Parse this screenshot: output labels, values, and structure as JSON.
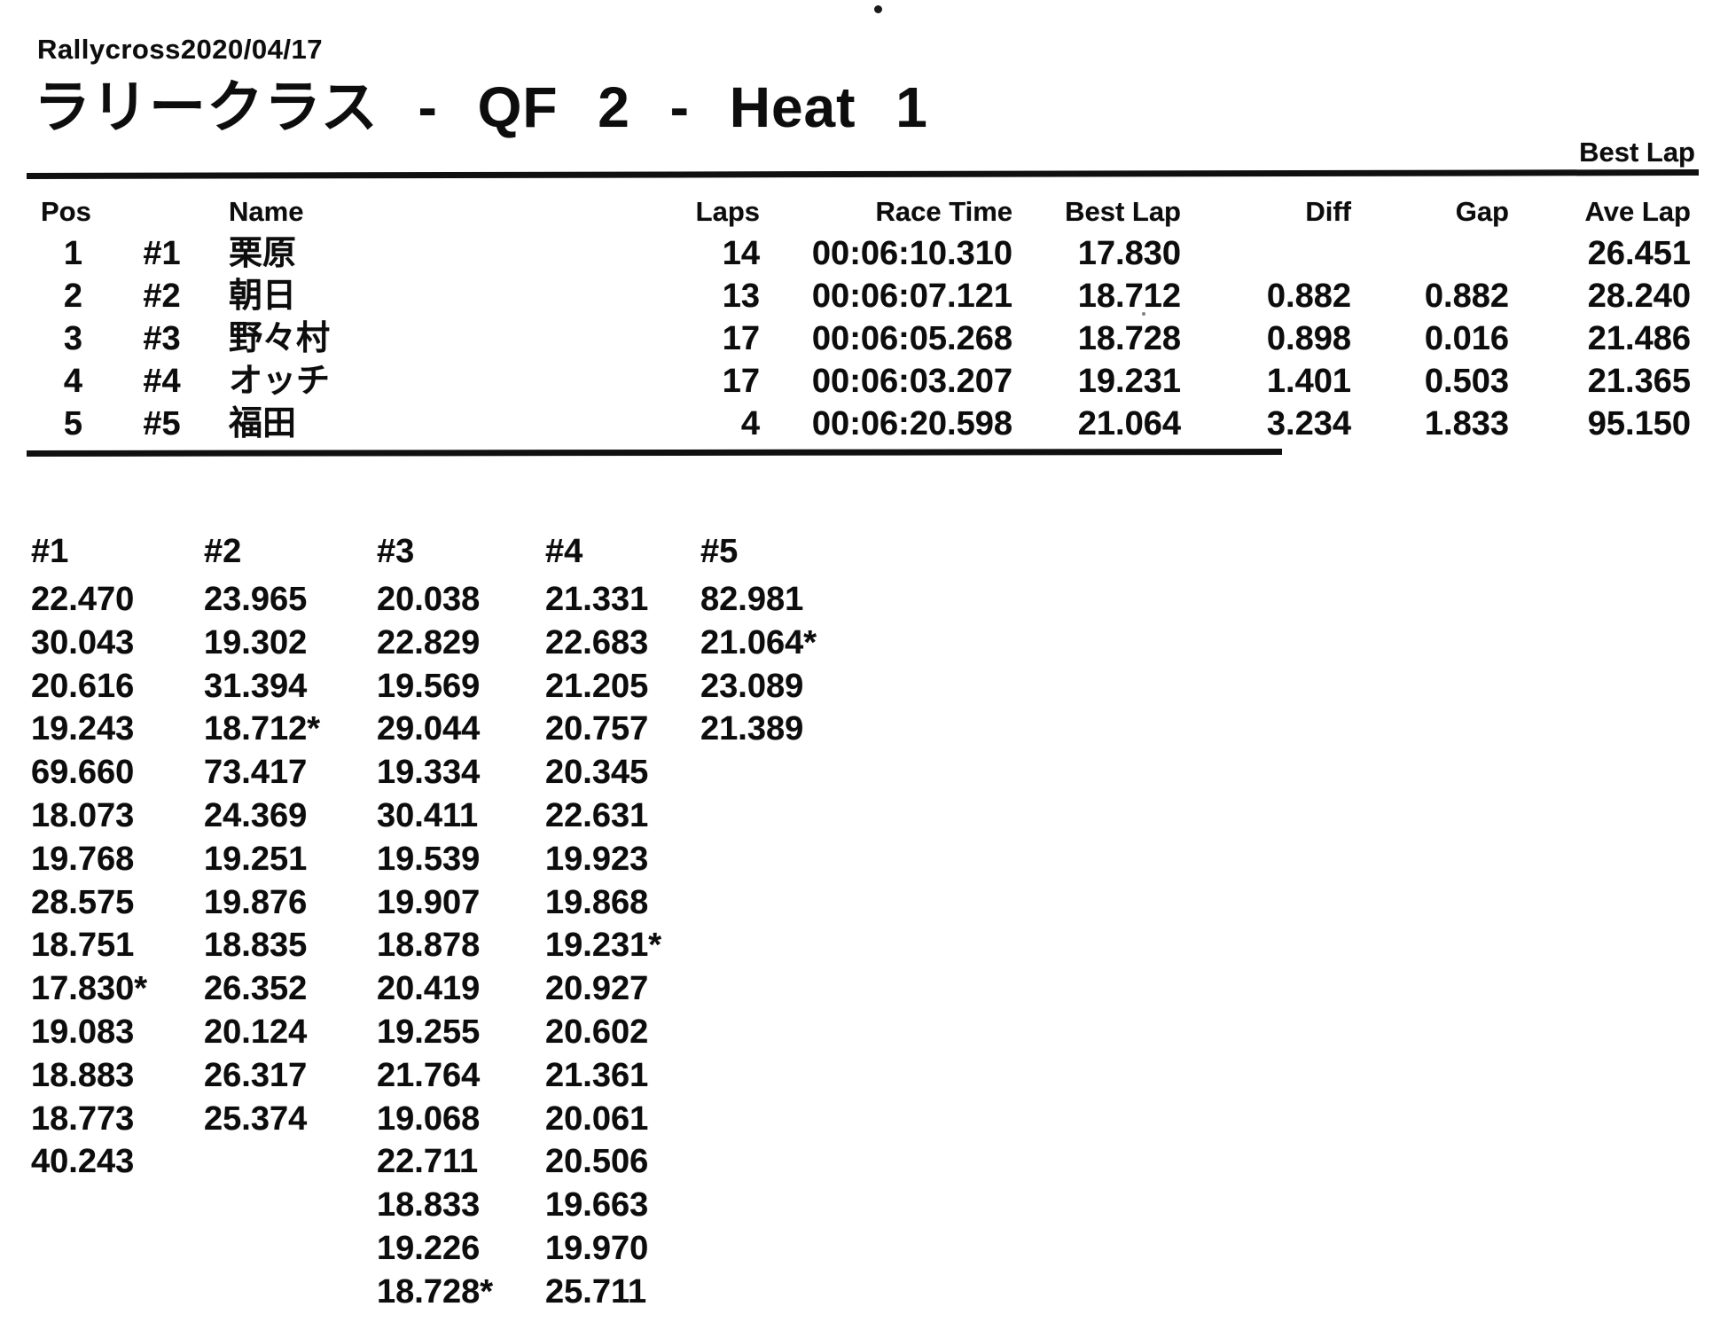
{
  "page": {
    "subtitle": "Rallycross2020/04/17",
    "title": "ラリークラス - QF 2 - Heat 1",
    "best_lap_note": "Best Lap"
  },
  "colors": {
    "paper": "#ffffff",
    "ink": "#0d0d0d"
  },
  "results": {
    "headers": {
      "pos": "Pos",
      "car": "",
      "name": "Name",
      "laps": "Laps",
      "race_time": "Race Time",
      "best_lap": "Best Lap",
      "diff": "Diff",
      "gap": "Gap",
      "ave_lap": "Ave Lap"
    },
    "rows": [
      {
        "pos": "1",
        "car": "#1",
        "name": "栗原",
        "laps": "14",
        "race_time": "00:06:10.310",
        "best_lap": "17.830",
        "diff": "",
        "gap": "",
        "ave_lap": "26.451"
      },
      {
        "pos": "2",
        "car": "#2",
        "name": "朝日",
        "laps": "13",
        "race_time": "00:06:07.121",
        "best_lap": "18.712",
        "diff": "0.882",
        "gap": "0.882",
        "ave_lap": "28.240"
      },
      {
        "pos": "3",
        "car": "#3",
        "name": "野々村",
        "laps": "17",
        "race_time": "00:06:05.268",
        "best_lap": "18.728",
        "diff": "0.898",
        "gap": "0.016",
        "ave_lap": "21.486"
      },
      {
        "pos": "4",
        "car": "#4",
        "name": "オッチ",
        "laps": "17",
        "race_time": "00:06:03.207",
        "best_lap": "19.231",
        "diff": "1.401",
        "gap": "0.503",
        "ave_lap": "21.365"
      },
      {
        "pos": "5",
        "car": "#5",
        "name": "福田",
        "laps": "4",
        "race_time": "00:06:20.598",
        "best_lap": "21.064",
        "diff": "3.234",
        "gap": "1.833",
        "ave_lap": "95.150"
      }
    ]
  },
  "lap_times": {
    "columns": [
      {
        "car": "#1",
        "laps": [
          "22.470",
          "30.043",
          "20.616",
          "19.243",
          "69.660",
          "18.073",
          "19.768",
          "28.575",
          "18.751",
          "17.830*",
          "19.083",
          "18.883",
          "18.773",
          "40.243"
        ]
      },
      {
        "car": "#2",
        "laps": [
          "23.965",
          "19.302",
          "31.394",
          "18.712*",
          "73.417",
          "24.369",
          "19.251",
          "19.876",
          "18.835",
          "26.352",
          "20.124",
          "26.317",
          "25.374"
        ]
      },
      {
        "car": "#3",
        "laps": [
          "20.038",
          "22.829",
          "19.569",
          "29.044",
          "19.334",
          "30.411",
          "19.539",
          "19.907",
          "18.878",
          "20.419",
          "19.255",
          "21.764",
          "19.068",
          "22.711",
          "18.833",
          "19.226",
          "18.728*"
        ]
      },
      {
        "car": "#4",
        "laps": [
          "21.331",
          "22.683",
          "21.205",
          "20.757",
          "20.345",
          "22.631",
          "19.923",
          "19.868",
          "19.231*",
          "20.927",
          "20.602",
          "21.361",
          "20.061",
          "20.506",
          "19.663",
          "19.970",
          "25.711"
        ]
      },
      {
        "car": "#5",
        "laps": [
          "82.981",
          "21.064*",
          "23.089",
          "21.389"
        ]
      }
    ]
  }
}
